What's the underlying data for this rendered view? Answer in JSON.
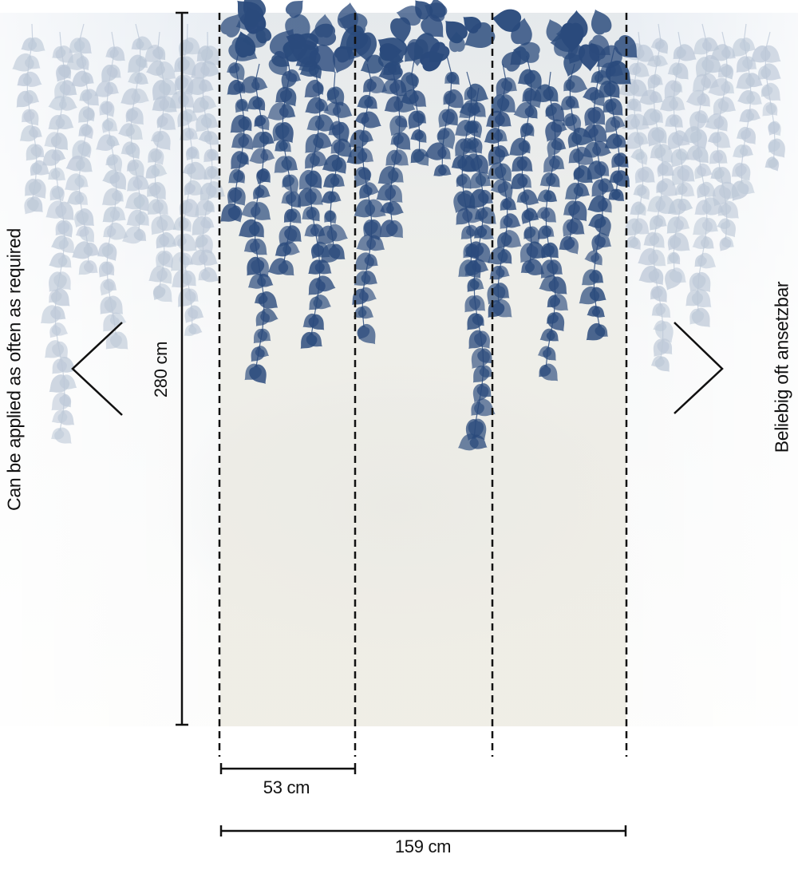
{
  "image": {
    "dimensions": {
      "height_label": "280 cm",
      "panel_width_label": "53 cm",
      "total_width_label": "159 cm"
    },
    "side_notes": {
      "left": "Can be applied as often as required",
      "right": "Beliebig oft ansetzbar"
    },
    "mural": {
      "subject": "hanging-leaves",
      "leaf_color": "#2a4a7c",
      "faded_leaf_color": "#a9b8cc",
      "background_color": "#ece9e0",
      "panel_count": 3
    }
  }
}
